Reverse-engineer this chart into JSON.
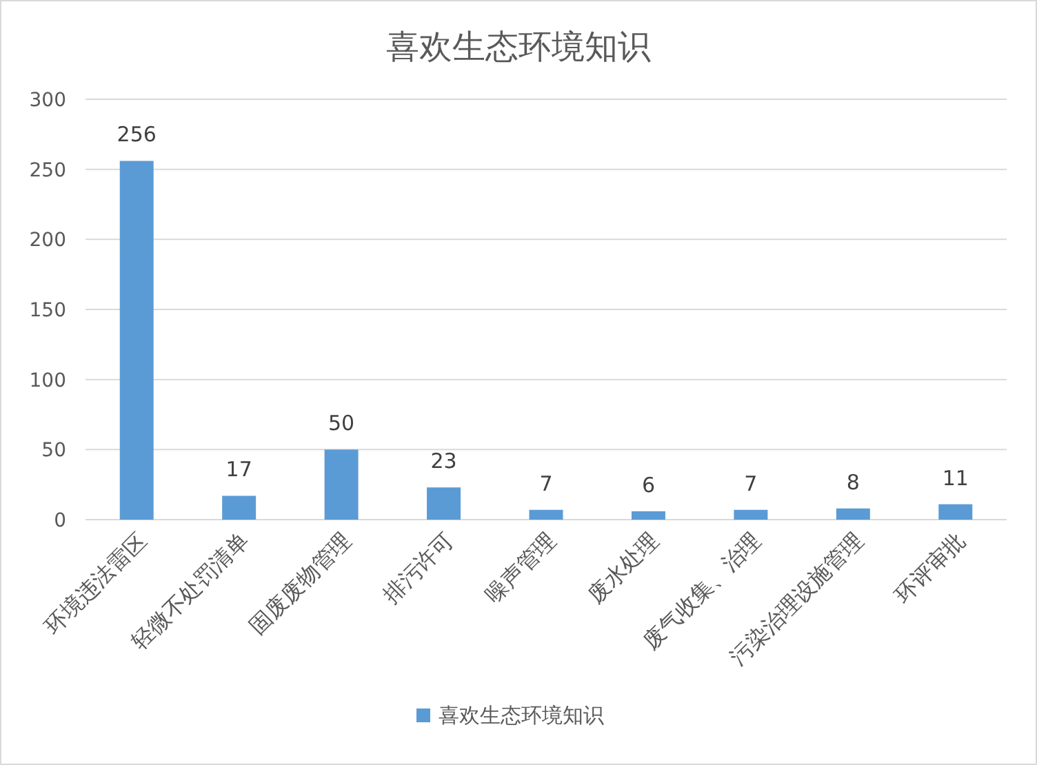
{
  "chart_data": {
    "type": "bar",
    "title": "喜欢生态环境知识",
    "categories": [
      "环境违法雷区",
      "轻微不处罚清单",
      "固废废物管理",
      "排污许可",
      "噪声管理",
      "废水处理",
      "废气收集、治理",
      "污染治理设施管理",
      "环评审批"
    ],
    "series": [
      {
        "name": "喜欢生态环境知识",
        "color": "#5b9bd5",
        "values": [
          256,
          17,
          50,
          23,
          7,
          6,
          7,
          8,
          11
        ]
      }
    ],
    "ylim": [
      0,
      300
    ],
    "yticks": [
      0,
      50,
      100,
      150,
      200,
      250,
      300
    ],
    "grid": "y",
    "legend": "bottom",
    "data_labels": true
  }
}
